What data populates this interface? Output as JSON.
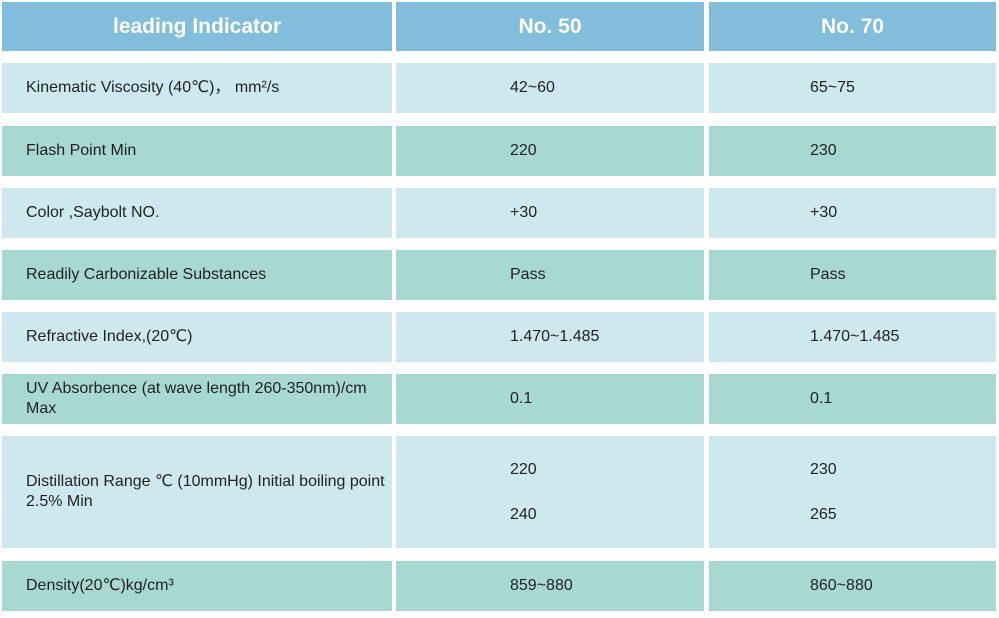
{
  "table": {
    "header": [
      "leading Indicator",
      "No. 50",
      "No. 70"
    ],
    "rows": [
      [
        "Kinematic Viscosity (40℃)， mm²/s",
        "42~60",
        "65~75"
      ],
      [
        "Flash Point Min",
        "220",
        "230"
      ],
      [
        "Color ,Saybolt NO.",
        "+30",
        "+30"
      ],
      [
        "Readily Carbonizable Substances",
        "Pass",
        "Pass"
      ],
      [
        "Refractive Index,(20℃)",
        "1.470~1.485",
        "1.470~1.485"
      ],
      [
        "UV Absorbence (at wave length 260-350nm)/cm Max",
        "0.1",
        "0.1"
      ],
      [
        "Distillation Range ℃ (10mmHg) Initial boiling point 2.5% Min",
        [
          "220",
          "240"
        ],
        [
          "230",
          "265"
        ]
      ],
      [
        "Density(20℃)kg/cm³",
        "859~880",
        "860~880"
      ]
    ]
  }
}
